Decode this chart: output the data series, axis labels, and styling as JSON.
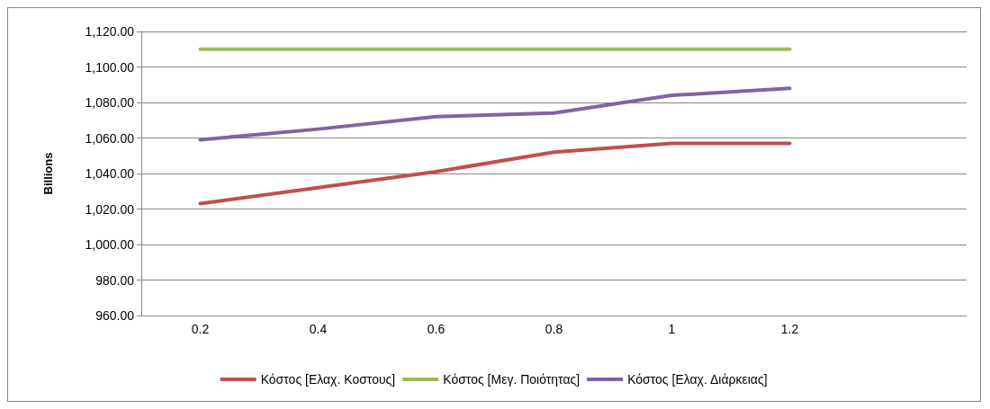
{
  "chart_data": {
    "type": "line",
    "ylabel": "Billions",
    "categories": [
      "0.2",
      "0.4",
      "0.6",
      "0.8",
      "1",
      "1.2",
      null
    ],
    "series": [
      {
        "name": "Κόστος [Ελαχ. Κοστους]",
        "color": "#c0504d",
        "values": [
          1023,
          1032,
          1041,
          1052,
          1057,
          1057,
          null
        ]
      },
      {
        "name": "Κόστος [Μεγ. Ποιότητας]",
        "color": "#9bbb59",
        "values": [
          1110,
          1110,
          1110,
          1110,
          1110,
          1110,
          null
        ]
      },
      {
        "name": "Κόστος [Ελαχ. Διάρκειας]",
        "color": "#8064a2",
        "values": [
          1059,
          1065,
          1072,
          1074,
          1084,
          1088,
          null
        ]
      }
    ],
    "ylim": [
      960,
      1120
    ],
    "yticks": [
      {
        "value": 960,
        "label": "960.00"
      },
      {
        "value": 980,
        "label": "980.00"
      },
      {
        "value": 1000,
        "label": "1,000.00"
      },
      {
        "value": 1020,
        "label": "1,020.00"
      },
      {
        "value": 1040,
        "label": "1,040.00"
      },
      {
        "value": 1060,
        "label": "1,060.00"
      },
      {
        "value": 1080,
        "label": "1,080.00"
      },
      {
        "value": 1100,
        "label": "1,100.00"
      },
      {
        "value": 1120,
        "label": "1,120.00"
      }
    ],
    "grid": "y",
    "legend": "bottom",
    "marker": "none",
    "line_style": "solid"
  }
}
